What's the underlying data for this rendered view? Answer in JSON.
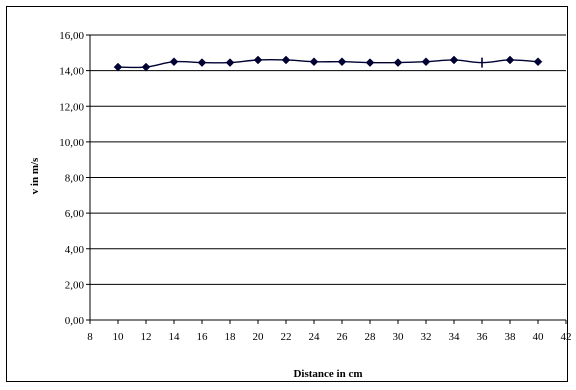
{
  "chart_data": {
    "type": "line",
    "title": "",
    "xlabel": "Distance in cm",
    "ylabel": "v in m/s",
    "xlim": [
      8,
      42
    ],
    "ylim": [
      0,
      16
    ],
    "x_ticks": [
      8,
      10,
      12,
      14,
      16,
      18,
      20,
      22,
      24,
      26,
      28,
      30,
      32,
      34,
      36,
      38,
      40,
      42
    ],
    "y_ticks": [
      0,
      2,
      4,
      6,
      8,
      10,
      12,
      14,
      16
    ],
    "y_tick_labels": [
      "0,00",
      "2,00",
      "4,00",
      "6,00",
      "8,00",
      "10,00",
      "12,00",
      "14,00",
      "16,00"
    ],
    "grid": "horizontal",
    "legend": "none",
    "series": [
      {
        "x": [
          10,
          12,
          14,
          16,
          18,
          20,
          22,
          24,
          26,
          28,
          30,
          32,
          34,
          36,
          38,
          40
        ],
        "values": [
          14.2,
          14.2,
          14.5,
          14.45,
          14.45,
          14.6,
          14.6,
          14.5,
          14.5,
          14.45,
          14.45,
          14.5,
          14.6,
          14.45,
          14.6,
          14.5
        ],
        "markers": [
          "diamond",
          "diamond",
          "diamond",
          "diamond",
          "diamond",
          "diamond",
          "diamond",
          "diamond",
          "diamond",
          "diamond",
          "diamond",
          "diamond",
          "diamond",
          "dash",
          "diamond",
          "diamond"
        ],
        "color": "#000033"
      }
    ]
  }
}
